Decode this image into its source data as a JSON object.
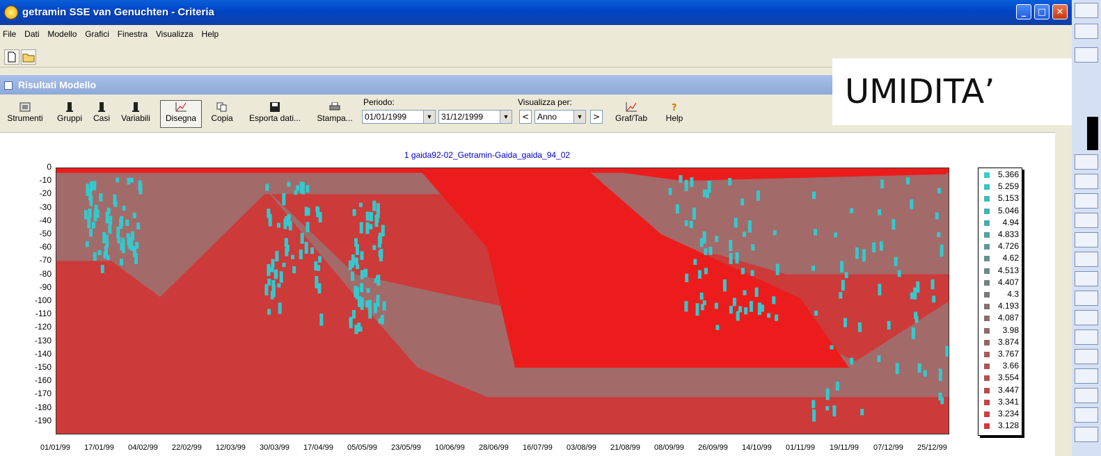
{
  "window": {
    "title": "getramin  SSE van Genuchten - Criteria"
  },
  "menu": [
    "File",
    "Dati",
    "Modello",
    "Grafici",
    "Finestra",
    "Visualizza",
    "Help"
  ],
  "child_window": {
    "title": "Risultati Modello"
  },
  "toolbar": {
    "buttons": [
      "Strumenti",
      "Gruppi",
      "Casi",
      "Variabili",
      "Disegna",
      "Copia",
      "Esporta dati...",
      "Stampa...",
      "Graf/Tab",
      "Help"
    ],
    "periodo_label": "Periodo:",
    "date_from": "01/01/1999",
    "date_to": "31/12/1999",
    "visualizza_label": "Visualizza per:",
    "visualizza_value": "Anno",
    "prev": "<",
    "next": ">"
  },
  "overlay_text": "UMIDITA’",
  "chart_data": {
    "type": "heatmap",
    "title": "1 gaida92-02_Getramin-Gaida_gaida_94_02",
    "y_ticks": [
      "0",
      "-10",
      "-20",
      "-30",
      "-40",
      "-50",
      "-60",
      "-70",
      "-80",
      "-90",
      "-100",
      "-110",
      "-120",
      "-130",
      "-140",
      "-150",
      "-160",
      "-170",
      "-180",
      "-190"
    ],
    "x_ticks": [
      "01/01/99",
      "17/01/99",
      "04/02/99",
      "22/02/99",
      "12/03/99",
      "30/03/99",
      "17/04/99",
      "05/05/99",
      "23/05/99",
      "10/06/99",
      "28/06/99",
      "16/07/99",
      "03/08/99",
      "21/08/99",
      "08/09/99",
      "26/09/99",
      "14/10/99",
      "01/11/99",
      "19/11/99",
      "07/12/99",
      "25/12/99"
    ],
    "ylim": [
      -200,
      0
    ],
    "legend": {
      "placement": "right",
      "values": [
        "5.366",
        "5.259",
        "5.153",
        "5.046",
        "4.94",
        "4.833",
        "4.726",
        "4.62",
        "4.513",
        "4.407",
        "4.3",
        "4.193",
        "4.087",
        "3.98",
        "3.874",
        "3.767",
        "3.66",
        "3.554",
        "3.447",
        "3.341",
        "3.234",
        "3.128"
      ],
      "colors": [
        "#33cccc",
        "#38c4c4",
        "#3dbcbc",
        "#45b2b2",
        "#4aaaaa",
        "#52a2a2",
        "#5a9a9a",
        "#629292",
        "#6a8a8a",
        "#728282",
        "#7a7a7a",
        "#827474",
        "#8a6e6e",
        "#926868",
        "#9a6262",
        "#a25c5c",
        "#aa5656",
        "#b25050",
        "#ba4a4a",
        "#c24444",
        "#ca3e3e",
        "#d23838"
      ]
    },
    "colors": {
      "wet": "#ec1c1c",
      "mid": "#a36a6a",
      "dry": "#cc3a3a",
      "peak": "#36c8cc"
    }
  }
}
